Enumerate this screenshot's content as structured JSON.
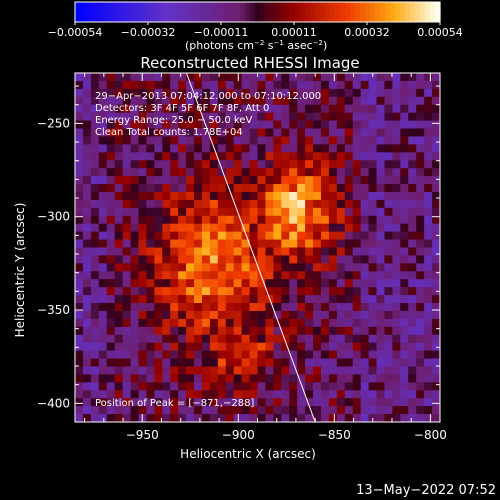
{
  "colorbar": {
    "ticks": [
      "−0.00054",
      "−0.00032",
      "−0.00011",
      "0.00011",
      "0.00032",
      "0.00054"
    ],
    "unit_label_parts": [
      "(photons cm",
      "−2",
      " s",
      "−1",
      " asec",
      "−2",
      ")"
    ]
  },
  "chart_data": {
    "type": "heatmap",
    "title": "Reconstructed RHESSI Image",
    "xlabel": "Heliocentric X (arcsec)",
    "ylabel": "Heliocentric Y (arcsec)",
    "xlim": [
      -985,
      -795
    ],
    "ylim": [
      -410,
      -223
    ],
    "x_ticks": [
      -950,
      -900,
      -850,
      -800
    ],
    "x_tick_labels": [
      "−950",
      "−900",
      "−850",
      "−800"
    ],
    "y_ticks": [
      -250,
      -300,
      -350,
      -400
    ],
    "y_tick_labels": [
      "−250",
      "−300",
      "−350",
      "−400"
    ],
    "colorbar_range": [
      -0.00054,
      0.00054
    ],
    "limb_line": {
      "from": [
        -927,
        -223
      ],
      "to": [
        -860,
        -410
      ]
    },
    "peak": {
      "x": -871,
      "y": -288
    },
    "info_lines": [
      "29−Apr−2013 07:04:12.000 to 07:10:12.000",
      "Detectors: 3F 4F 5F 6F 7F 8F, Att 0",
      "Energy Range: 25.0 − 50.0 keV",
      "Clean      Total counts: 1.78E+04"
    ],
    "peak_label": "Position of Peak = [−871,−288]"
  },
  "footer": {
    "timestamp": "13−May−2022 07:52"
  },
  "colors": {
    "background": "#000000",
    "foreground": "#ffffff"
  }
}
